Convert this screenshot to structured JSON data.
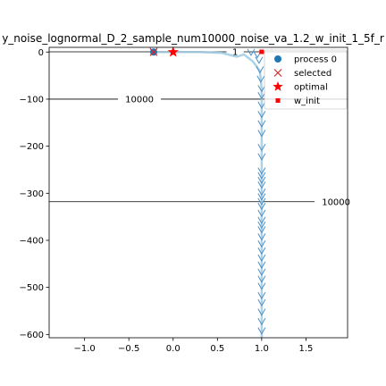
{
  "chart_data": {
    "type": "scatter",
    "title": "y_noise_lognormal_D_2_sample_num10000_noise_va_1.2_w_init_1_5f_r",
    "xlim": [
      -1.4,
      1.97
    ],
    "ylim": [
      -607,
      10
    ],
    "x_ticks": [
      -1.0,
      -0.5,
      0.0,
      0.5,
      1.0,
      1.5
    ],
    "x_tick_labels": [
      "−1.0",
      "−0.5",
      "0.0",
      "0.5",
      "1.0",
      "1.5"
    ],
    "y_ticks": [
      0,
      -100,
      -200,
      -300,
      -400,
      -500,
      -600
    ],
    "y_tick_labels": [
      "0",
      "−100",
      "−200",
      "−300",
      "−400",
      "−500",
      "−600"
    ],
    "grid": false,
    "legend_position": "top-right",
    "legend": [
      {
        "label": "process 0",
        "marker": "circle",
        "color": "#1f77b4"
      },
      {
        "label": "selected",
        "marker": "x",
        "color": "#d62728"
      },
      {
        "label": "optimal",
        "marker": "star",
        "color": "#ff0000"
      },
      {
        "label": "w_init",
        "marker": "square",
        "color": "#ff0000"
      }
    ],
    "contours": [
      {
        "level": 1,
        "label": "1",
        "y": 0.5
      },
      {
        "level": 10000,
        "label": "10000",
        "y": -100
      },
      {
        "level": 10000,
        "label": "10000",
        "y": -318
      }
    ],
    "contour_labels": [
      {
        "text": "1",
        "x": 0.7,
        "y": 0.5
      },
      {
        "text": "10000",
        "x": -0.38,
        "y": -100
      },
      {
        "text": "10000",
        "x": 1.84,
        "y": -318
      }
    ],
    "process_path": {
      "x": [
        -0.22,
        0.0,
        0.3,
        0.55,
        0.72,
        0.8,
        0.9,
        0.98,
        1.0,
        1.0,
        1.0,
        1.0,
        1.0,
        1.0,
        1.0,
        1.0,
        1.0,
        1.0,
        1.0,
        1.0,
        1.0
      ],
      "y": [
        0,
        0,
        0,
        -2,
        -10,
        -5,
        -20,
        -40,
        -80,
        -120,
        -160,
        -200,
        -250,
        -300,
        -350,
        -400,
        -450,
        -500,
        -550,
        -600,
        -607
      ]
    },
    "selected_points": {
      "x": [
        -0.22,
        0.88,
        0.95,
        0.97,
        0.98,
        0.99,
        1.0,
        1.0,
        1.0,
        1.0,
        1.0,
        1.0,
        1.0,
        1.0,
        1.0,
        1.0,
        1.0,
        1.0,
        1.0,
        1.0,
        1.0,
        1.0,
        1.0,
        1.0,
        1.0,
        1.0,
        1.0,
        1.0,
        1.0,
        1.0,
        1.0,
        1.0,
        1.0,
        1.0,
        1.0,
        1.0,
        1.0,
        1.0,
        1.0
      ],
      "y": [
        0,
        -3,
        -8,
        -20,
        -40,
        -60,
        -80,
        -95,
        -115,
        -135,
        -155,
        -175,
        -205,
        -225,
        -255,
        -265,
        -275,
        -285,
        -300,
        -310,
        -320,
        -330,
        -345,
        -360,
        -370,
        -380,
        -395,
        -410,
        -425,
        -440,
        -455,
        -470,
        -485,
        -500,
        -520,
        -535,
        -555,
        -575,
        -595
      ]
    },
    "optimal": {
      "x": 0.0,
      "y": 0.0
    },
    "w_init": {
      "x": 1.0,
      "y": 0.5
    }
  }
}
